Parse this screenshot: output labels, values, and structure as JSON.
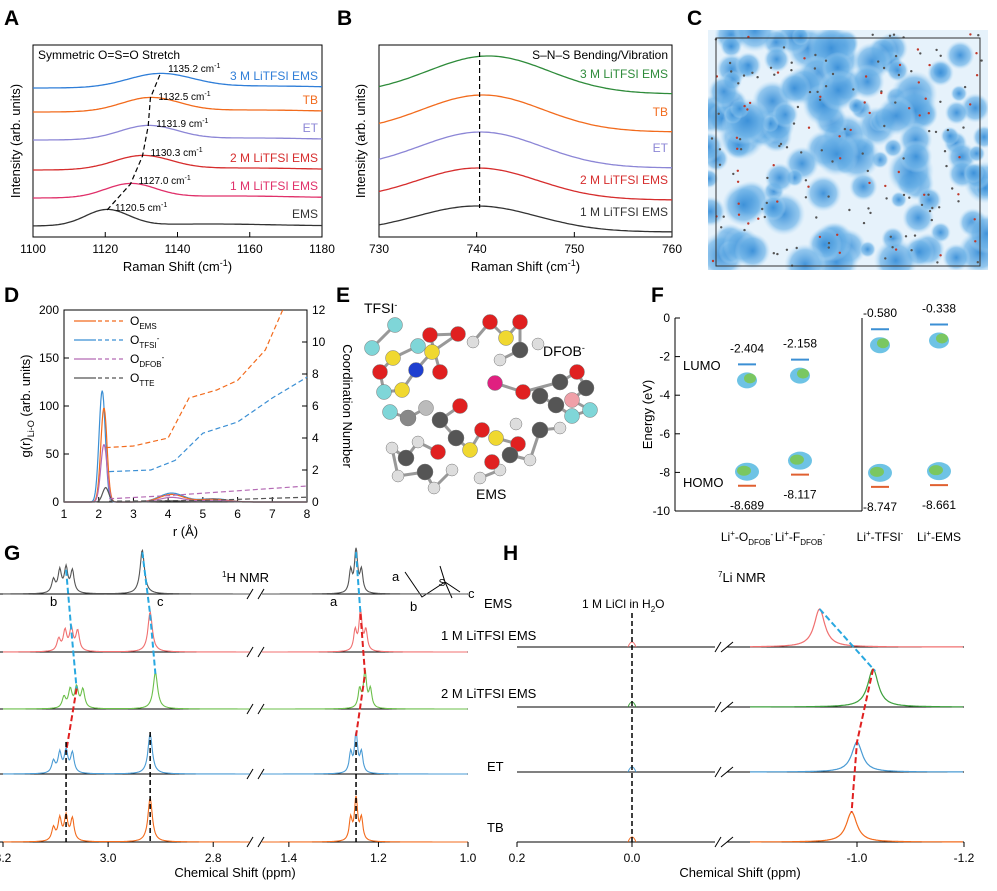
{
  "figure": {
    "panel_letters": [
      "A",
      "B",
      "C",
      "D",
      "E",
      "F",
      "G",
      "H"
    ]
  },
  "chart_data": [
    {
      "id": "A",
      "type": "line",
      "title": "Symmetric O=S=O Stretch",
      "xlabel": "Raman Shift (cm⁻¹)",
      "ylabel": "Intensity (arb. units)",
      "xlim": [
        1100,
        1180
      ],
      "xticks": [
        "1100",
        "1120",
        "1140",
        "1160",
        "1180"
      ],
      "series": [
        {
          "name": "3 M LiTFSI EMS",
          "color": "#2f7ed8",
          "peak": 1135.2,
          "peak_label": "1135.2 cm⁻¹"
        },
        {
          "name": "TB",
          "color": "#f26b1d",
          "peak": 1132.5,
          "peak_label": "1132.5 cm⁻¹"
        },
        {
          "name": "ET",
          "color": "#8c86d6",
          "peak": 1131.9,
          "peak_label": "1131.9 cm⁻¹"
        },
        {
          "name": "2 M LiTFSI EMS",
          "color": "#d62d2d",
          "peak": 1130.3,
          "peak_label": "1130.3 cm⁻¹"
        },
        {
          "name": "1 M LiTFSI EMS",
          "color": "#e0306a",
          "peak": 1127.0,
          "peak_label": "1127.0 cm⁻¹"
        },
        {
          "name": "EMS",
          "color": "#333333",
          "peak": 1120.5,
          "peak_label": "1120.5 cm⁻¹"
        }
      ]
    },
    {
      "id": "B",
      "type": "line",
      "title": "S–N–S Bending/Vibration",
      "xlabel": "Raman Shift (cm⁻¹)",
      "ylabel": "Intensity (arb. units)",
      "xlim": [
        730,
        760
      ],
      "xticks": [
        "730",
        "740",
        "750",
        "760"
      ],
      "marker_line": 740.3,
      "series": [
        {
          "name": "3 M LiTFSI EMS",
          "color": "#2e8b3a",
          "peak": 741.2
        },
        {
          "name": "TB",
          "color": "#f26b1d",
          "peak": 740.6
        },
        {
          "name": "ET",
          "color": "#8c86d6",
          "peak": 740.4
        },
        {
          "name": "2 M LiTFSI EMS",
          "color": "#d62d2d",
          "peak": 740.1
        },
        {
          "name": "1 M LiTFSI EMS",
          "color": "#333333",
          "peak": 740.0
        }
      ]
    },
    {
      "id": "D",
      "type": "line",
      "xlabel": "r (Å)",
      "ylabel_left": "g(r)",
      "ylabel_left_sub": "Li-O",
      "ylabel_left_suffix": " (arb. units)",
      "ylabel_right": "Coordination Number",
      "xlim": [
        1,
        8
      ],
      "ylim_left": [
        0,
        200
      ],
      "ylim_right": [
        0,
        12
      ],
      "xticks": [
        "1",
        "2",
        "3",
        "4",
        "5",
        "6",
        "7",
        "8"
      ],
      "yticks_left": [
        "0",
        "50",
        "100",
        "150",
        "200"
      ],
      "yticks_right": [
        "0",
        "2",
        "4",
        "6",
        "8",
        "10",
        "12"
      ],
      "legend": [
        {
          "base": "O",
          "sub": "EMS",
          "sup": "",
          "color": "#f26b1d"
        },
        {
          "base": "O",
          "sub": "TFSI",
          "sup": "-",
          "color": "#3b8fd4"
        },
        {
          "base": "O",
          "sub": "DFOB",
          "sup": "-",
          "color": "#b46ab4"
        },
        {
          "base": "O",
          "sub": "TTE",
          "sup": "",
          "color": "#555555"
        }
      ],
      "gr_peaks": [
        {
          "name": "O_TFSI",
          "r": 2.1,
          "height": 116,
          "color": "#3b8fd4"
        },
        {
          "name": "O_EMS",
          "r": 2.15,
          "height": 98,
          "color": "#f26b1d"
        },
        {
          "name": "O_DFOB",
          "r": 2.15,
          "height": 60,
          "color": "#b46ab4"
        },
        {
          "name": "O_TTE",
          "r": 2.2,
          "height": 15,
          "color": "#555555"
        }
      ],
      "cn_curves": [
        {
          "name": "O_EMS",
          "color": "#f26b1d",
          "points": [
            [
              2.2,
              3.4
            ],
            [
              3.0,
              3.5
            ],
            [
              4.0,
              4.0
            ],
            [
              4.6,
              6.5
            ],
            [
              5.4,
              7.0
            ],
            [
              6.0,
              7.6
            ],
            [
              6.8,
              9.5
            ],
            [
              7.3,
              12.0
            ]
          ]
        },
        {
          "name": "O_TFSI",
          "color": "#3b8fd4",
          "points": [
            [
              2.3,
              1.9
            ],
            [
              3.5,
              2.0
            ],
            [
              4.2,
              2.6
            ],
            [
              5.0,
              4.3
            ],
            [
              6.0,
              5.0
            ],
            [
              7.0,
              6.5
            ],
            [
              8.0,
              7.8
            ]
          ]
        },
        {
          "name": "O_DFOB",
          "color": "#b46ab4",
          "points": [
            [
              2.3,
              0.2
            ],
            [
              4.0,
              0.4
            ],
            [
              6.0,
              0.7
            ],
            [
              8.0,
              1.0
            ]
          ]
        },
        {
          "name": "O_TTE",
          "color": "#555555",
          "points": [
            [
              2.3,
              0.05
            ],
            [
              5.0,
              0.1
            ],
            [
              8.0,
              0.3
            ]
          ]
        }
      ]
    },
    {
      "id": "F",
      "type": "scatter",
      "ylabel": "Energy (eV)",
      "ylim": [
        -10,
        0
      ],
      "yticks": [
        "0",
        "-2",
        "-4",
        "-6",
        "-8",
        "-10"
      ],
      "lumo_label": "LUMO",
      "homo_label": "HOMO",
      "categories": [
        {
          "base": "Li",
          "sup": "+",
          "mid": "-O",
          "sub": "DFOB",
          "sup2": "-",
          "lumo": -2.404,
          "homo": -8.689,
          "lumo_text": "-2.404",
          "homo_text": "-8.689"
        },
        {
          "base": "Li",
          "sup": "+",
          "mid": "-F",
          "sub": "DFOB",
          "sup2": "-",
          "lumo": -2.158,
          "homo": -8.117,
          "lumo_text": "-2.158",
          "homo_text": "-8.117"
        },
        {
          "base": "Li",
          "sup": "+",
          "mid": "-TFSI",
          "sub": "",
          "sup2": "-",
          "lumo": -0.58,
          "homo": -8.747,
          "lumo_text": "-0.580",
          "homo_text": "-8.747"
        },
        {
          "base": "Li",
          "sup": "+",
          "mid": "-EMS",
          "sub": "",
          "sup2": "",
          "lumo": -0.338,
          "homo": -8.661,
          "lumo_text": "-0.338",
          "homo_text": "-8.661"
        }
      ]
    },
    {
      "id": "G",
      "type": "line",
      "title_sup": "1",
      "title": "H NMR",
      "xlabel": "Chemical Shift (ppm)",
      "xticks": [
        "3.2",
        "3.0",
        "2.8",
        "1.4",
        "1.2",
        "1.0"
      ],
      "peak_labels": [
        "b",
        "c",
        "a"
      ],
      "structure_labels": [
        "a",
        "b",
        "c"
      ],
      "series": [
        {
          "name": "EMS",
          "color": "#555555",
          "peaks_ppm": [
            3.08,
            2.935,
            1.25
          ]
        },
        {
          "name": "1 M LiTFSI EMS",
          "color": "#f07070",
          "peaks_ppm": [
            3.07,
            2.92,
            1.24
          ]
        },
        {
          "name": "2 M LiTFSI EMS",
          "color": "#6bbf4a",
          "peaks_ppm": [
            3.06,
            2.91,
            1.23
          ]
        },
        {
          "name": "ET",
          "color": "#4a9bd4",
          "peaks_ppm": [
            3.08,
            2.92,
            1.25
          ]
        },
        {
          "name": "TB",
          "color": "#f26b1d",
          "peaks_ppm": [
            3.08,
            2.92,
            1.25
          ]
        }
      ]
    },
    {
      "id": "H",
      "type": "line",
      "title_sup": "7",
      "title": "Li NMR",
      "reference_prefix": "1 M LiCl in H",
      "reference_sub": "2",
      "reference_suffix": "O",
      "xlabel": "Chemical Shift (ppm)",
      "xticks": [
        "0.2",
        "0.0",
        "-1.0",
        "-1.2"
      ],
      "series": [
        {
          "name": "1 M LiTFSI EMS",
          "color": "#f07070",
          "peak_ppm": -0.93
        },
        {
          "name": "2 M LiTFSI EMS",
          "color": "#3da03d",
          "peak_ppm": -1.03
        },
        {
          "name": "ET",
          "color": "#4a9bd4",
          "peak_ppm": -1.0
        },
        {
          "name": "TB",
          "color": "#f26b1d",
          "peak_ppm": -0.99
        }
      ]
    }
  ],
  "panel_E": {
    "labels": [
      "TFSI",
      "DFOB",
      "EMS"
    ],
    "label_sup": "-"
  }
}
